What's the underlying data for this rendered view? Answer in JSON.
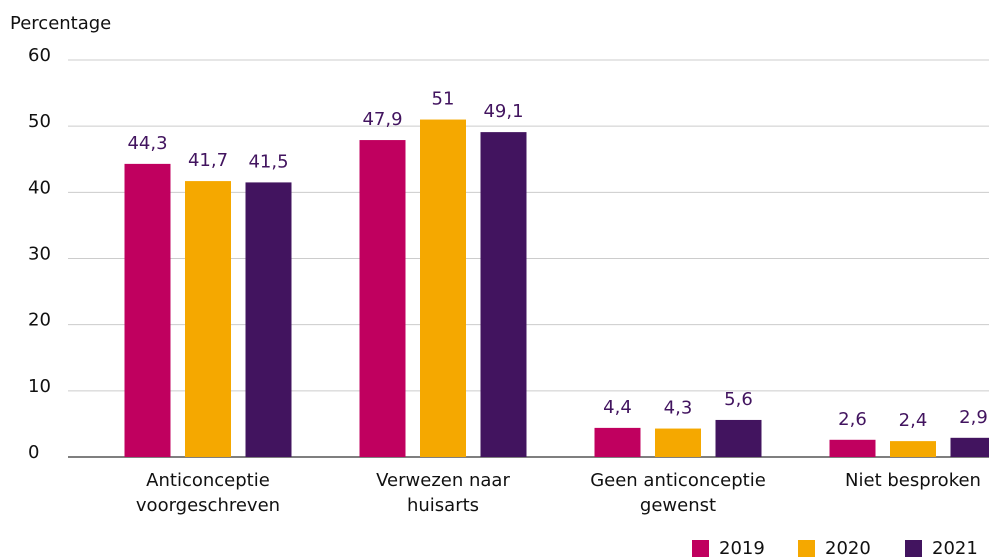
{
  "chart_data": {
    "type": "bar",
    "y_axis_label": "Percentage",
    "categories": [
      [
        "Anticonceptie",
        "voorgeschreven"
      ],
      [
        "Verwezen naar",
        "huisarts"
      ],
      [
        "Geen anticonceptie",
        "gewenst"
      ],
      [
        "Niet besproken"
      ]
    ],
    "series": [
      {
        "name": "2019",
        "color": "#c0005f",
        "values": [
          44.3,
          47.9,
          4.4,
          2.6
        ],
        "value_labels": [
          "44,3",
          "47,9",
          "4,4",
          "2,6"
        ]
      },
      {
        "name": "2020",
        "color": "#f5a800",
        "values": [
          41.7,
          51,
          4.3,
          2.4
        ],
        "value_labels": [
          "41,7",
          "51",
          "4,3",
          "2,4"
        ]
      },
      {
        "name": "2021",
        "color": "#42145f",
        "values": [
          41.5,
          49.1,
          5.6,
          2.9
        ],
        "value_labels": [
          "41,5",
          "49,1",
          "5,6",
          "2,9"
        ]
      }
    ],
    "ylim": [
      0,
      60
    ],
    "yticks": [
      0,
      10,
      20,
      30,
      40,
      50,
      60
    ],
    "grid": true,
    "legend": "bottom-right"
  }
}
